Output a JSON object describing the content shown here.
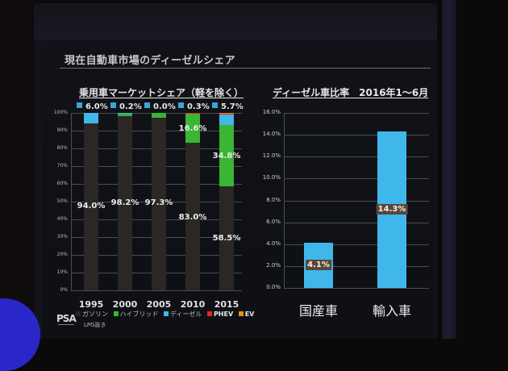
{
  "slide": {
    "title": "現在自動車市場のディーゼルシェア",
    "logo": "PSA",
    "logo_sub": "GROUPE"
  },
  "left_chart": {
    "subtitle": "乗用車マーケットシェア（軽を除く）",
    "y_ticks": [
      "100%",
      "90%",
      "80%",
      "70%",
      "60%",
      "50%",
      "40%",
      "30%",
      "20%",
      "10%",
      "0%"
    ],
    "top_labels": [
      "6.0%",
      "0.2%",
      "0.0%",
      "0.3%",
      "5.7%"
    ],
    "categories": [
      "1995",
      "2000",
      "2005",
      "2010",
      "2015"
    ],
    "gasoline_labels": [
      "94.0%",
      "98.2%",
      "97.3%",
      "83.0%",
      "58.5%"
    ],
    "hybrid_labels": [
      "",
      "",
      "",
      "16.6%",
      "34.8%"
    ],
    "legend": [
      {
        "label": "ガソリン",
        "color": "#2a2724"
      },
      {
        "label": "ハイブリッド",
        "color": "#3ab534"
      },
      {
        "label": "ディーゼル",
        "color": "#3fb7ea"
      },
      {
        "label": "PHEV",
        "color": "#e8261e"
      },
      {
        "label": "EV",
        "color": "#f08a1c"
      }
    ],
    "legend_note": "LPG抜き"
  },
  "right_chart": {
    "subtitle": "ディーゼル車比率　2016年1～6月",
    "y_ticks": [
      "16.0%",
      "14.0%",
      "12.0%",
      "10.0%",
      "8.0%",
      "6.0%",
      "4.0%",
      "2.0%",
      "0.0%"
    ],
    "categories": [
      "国産車",
      "輸入車"
    ],
    "value_labels": [
      "4.1%",
      "14.3%"
    ]
  },
  "chart_data": [
    {
      "type": "bar",
      "stacked": true,
      "title": "乗用車マーケットシェア（軽を除く）",
      "categories": [
        "1995",
        "2000",
        "2005",
        "2010",
        "2015"
      ],
      "series": [
        {
          "name": "ガソリン",
          "values": [
            94.0,
            98.2,
            97.3,
            83.0,
            58.5
          ]
        },
        {
          "name": "ハイブリッド",
          "values": [
            0.0,
            1.6,
            2.7,
            16.6,
            34.8
          ]
        },
        {
          "name": "ディーゼル",
          "values": [
            6.0,
            0.2,
            0.0,
            0.3,
            5.7
          ]
        },
        {
          "name": "PHEV",
          "values": [
            0,
            0,
            0,
            0.1,
            0.5
          ]
        },
        {
          "name": "EV",
          "values": [
            0,
            0,
            0,
            0,
            0.5
          ]
        }
      ],
      "xlabel": "",
      "ylabel": "",
      "ylim": [
        0,
        100
      ],
      "grid": true,
      "legend_position": "bottom",
      "annotations": [
        "LPG抜き"
      ]
    },
    {
      "type": "bar",
      "title": "ディーゼル車比率　2016年1～6月",
      "categories": [
        "国産車",
        "輸入車"
      ],
      "values": [
        4.1,
        14.3
      ],
      "xlabel": "",
      "ylabel": "",
      "ylim": [
        0,
        16
      ],
      "grid": true
    }
  ]
}
